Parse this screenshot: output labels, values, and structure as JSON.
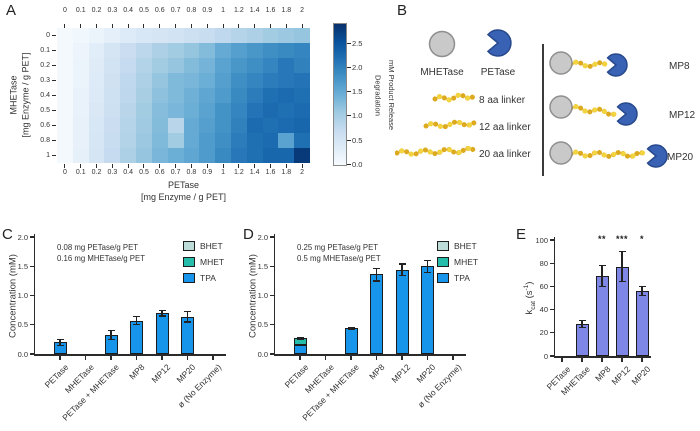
{
  "panel_labels": {
    "a": "A",
    "b": "B",
    "c": "C",
    "d": "D",
    "e": "E"
  },
  "colors": {
    "tpa": "#1795ea",
    "mhet": "#26bcab",
    "bhet": "#bedcd7",
    "kcat": "#7f87e6",
    "edge": "#1c1c1c",
    "axis": "#2b2b2b",
    "petase_shape": "#3a62b4",
    "petase_edge": "#27498c",
    "mhetase_fill": "#c9c9c9",
    "mhetase_edge": "#8f8f8f",
    "linker_dark": "#dca91f",
    "linker_light": "#f2d441",
    "divider": "#3a3a3a"
  },
  "panel_b": {
    "mhetase_label": "MHETase",
    "petase_label": "PETase",
    "linker_labels": [
      "8 aa linker",
      "12 aa linker",
      "20 aa linker"
    ],
    "construct_labels": [
      "MP8",
      "MP12",
      "MP20"
    ]
  },
  "chart_data": [
    {
      "id": "panel_a_heatmap",
      "type": "heatmap",
      "xlabel_line1": "PETase",
      "xlabel_line2": "[mg Enzyme / g PET]",
      "ylabel_line1": "MHETase",
      "ylabel_line2": "[mg Enzyme / g PET]",
      "x_categories": [
        "0",
        "0.1",
        "0.2",
        "0.3",
        "0.4",
        "0.5",
        "0.6",
        "0.7",
        "0.8",
        "0.9",
        "1",
        "1.2",
        "1.4",
        "1.6",
        "1.8",
        "2"
      ],
      "y_categories": [
        "0",
        "0.1",
        "0.2",
        "0.3",
        "0.4",
        "0.5",
        "0.6",
        "0.8",
        "1"
      ],
      "vmin": 0,
      "vmax": 2.9,
      "colorbar": {
        "ticks": [
          "0.0",
          "0.5",
          "1.0",
          "1.5",
          "2.0",
          "2.5"
        ],
        "tick_values": [
          0,
          0.5,
          1,
          1.5,
          2,
          2.5
        ],
        "label_line1": "Degradation",
        "label_line2": "mM Product Release"
      },
      "values": [
        [
          0.05,
          0.1,
          0.18,
          0.28,
          0.38,
          0.45,
          0.5,
          0.55,
          0.62,
          0.68,
          0.78,
          0.88,
          0.95,
          1.05,
          1.1,
          1.15
        ],
        [
          0.05,
          0.15,
          0.32,
          0.5,
          0.65,
          0.82,
          0.95,
          1.05,
          1.15,
          1.28,
          1.5,
          1.65,
          1.75,
          1.85,
          1.9,
          1.95
        ],
        [
          0.05,
          0.18,
          0.35,
          0.55,
          0.72,
          0.9,
          1.05,
          1.15,
          1.28,
          1.38,
          1.6,
          1.75,
          1.85,
          1.95,
          2.1,
          2.0
        ],
        [
          0.05,
          0.18,
          0.38,
          0.58,
          0.78,
          0.95,
          1.15,
          1.3,
          1.35,
          1.45,
          1.65,
          1.85,
          1.95,
          2.05,
          2.1,
          2.15
        ],
        [
          0.05,
          0.2,
          0.4,
          0.6,
          0.8,
          1.0,
          1.2,
          1.3,
          1.42,
          1.55,
          1.7,
          1.9,
          2.05,
          2.2,
          2.25,
          2.2
        ],
        [
          0.05,
          0.2,
          0.42,
          0.62,
          0.85,
          1.05,
          1.25,
          1.35,
          1.45,
          1.6,
          1.8,
          1.95,
          2.15,
          2.25,
          2.2,
          2.25
        ],
        [
          0.05,
          0.22,
          0.45,
          0.65,
          0.88,
          1.08,
          1.28,
          0.85,
          1.5,
          1.65,
          1.8,
          2.0,
          2.25,
          2.2,
          2.25,
          2.3
        ],
        [
          0.05,
          0.22,
          0.48,
          0.68,
          0.9,
          1.1,
          1.3,
          1.05,
          1.5,
          1.7,
          1.85,
          2.05,
          2.2,
          2.25,
          1.6,
          2.2
        ],
        [
          0.05,
          0.25,
          0.5,
          0.72,
          0.95,
          1.15,
          1.35,
          1.45,
          1.55,
          1.7,
          1.9,
          2.1,
          2.2,
          2.3,
          2.3,
          2.8
        ]
      ]
    },
    {
      "id": "panel_c",
      "type": "bar",
      "ylabel": "Concentration (mM)",
      "ylim": [
        0,
        2.0
      ],
      "yticks": [
        "0.0",
        "0.5",
        "1.0",
        "1.5",
        "2.0"
      ],
      "ytick_values": [
        0,
        0.5,
        1.0,
        1.5,
        2.0
      ],
      "annotation": [
        "0.08 mg PETase/g PET",
        "0.16 mg MHETase/g PET"
      ],
      "legend": [
        {
          "label": "BHET",
          "color_key": "bhet"
        },
        {
          "label": "MHET",
          "color_key": "mhet"
        },
        {
          "label": "TPA",
          "color_key": "tpa"
        }
      ],
      "categories": [
        "PETase",
        "MHETase",
        "PETase + MHETase",
        "MP8",
        "MP12",
        "MP20",
        "ø (No Enzyme)"
      ],
      "bars": [
        {
          "segments": [
            {
              "key": "tpa",
              "value": 0.2
            }
          ],
          "error": 0.05,
          "sig": ""
        },
        {
          "segments": [],
          "error": 0,
          "sig": ""
        },
        {
          "segments": [
            {
              "key": "tpa",
              "value": 0.33
            }
          ],
          "error": 0.08,
          "sig": ""
        },
        {
          "segments": [
            {
              "key": "tpa",
              "value": 0.57
            }
          ],
          "error": 0.07,
          "sig": ""
        },
        {
          "segments": [
            {
              "key": "tpa",
              "value": 0.7
            }
          ],
          "error": 0.05,
          "sig": ""
        },
        {
          "segments": [
            {
              "key": "tpa",
              "value": 0.64
            }
          ],
          "error": 0.09,
          "sig": ""
        },
        {
          "segments": [],
          "error": 0,
          "sig": ""
        }
      ]
    },
    {
      "id": "panel_d",
      "type": "bar",
      "ylabel": "Concentration (mM)",
      "ylim": [
        0,
        2.0
      ],
      "yticks": [
        "0.0",
        "0.5",
        "1.0",
        "1.5",
        "2.0"
      ],
      "ytick_values": [
        0,
        0.5,
        1.0,
        1.5,
        2.0
      ],
      "annotation": [
        "0.25 mg PETase/g PET",
        "0.5 mg MHETase/g PET"
      ],
      "legend": [
        {
          "label": "BHET",
          "color_key": "bhet"
        },
        {
          "label": "MHET",
          "color_key": "mhet"
        },
        {
          "label": "TPA",
          "color_key": "tpa"
        }
      ],
      "categories": [
        "PETase",
        "MHETase",
        "PETase + MHETase",
        "MP8",
        "MP12",
        "MP20",
        "ø (No Enzyme)"
      ],
      "bars": [
        {
          "segments": [
            {
              "key": "tpa",
              "value": 0.16
            },
            {
              "key": "mhet",
              "value": 0.11
            }
          ],
          "error": 0.02,
          "sig": ""
        },
        {
          "segments": [],
          "error": 0,
          "sig": ""
        },
        {
          "segments": [
            {
              "key": "tpa",
              "value": 0.44
            }
          ],
          "error": 0.02,
          "sig": ""
        },
        {
          "segments": [
            {
              "key": "tpa",
              "value": 1.36
            }
          ],
          "error": 0.11,
          "sig": ""
        },
        {
          "segments": [
            {
              "key": "tpa",
              "value": 1.44
            }
          ],
          "error": 0.1,
          "sig": ""
        },
        {
          "segments": [
            {
              "key": "tpa",
              "value": 1.5
            }
          ],
          "error": 0.1,
          "sig": ""
        },
        {
          "segments": [],
          "error": 0,
          "sig": ""
        }
      ]
    },
    {
      "id": "panel_e",
      "type": "bar",
      "ylabel_parts": {
        "base": "k",
        "sub": "cat",
        "unit": " (s",
        "sup": "-1",
        "close": ")"
      },
      "ylim": [
        0,
        100
      ],
      "yticks": [
        "0",
        "20",
        "40",
        "60",
        "80",
        "100"
      ],
      "ytick_values": [
        0,
        20,
        40,
        60,
        80,
        100
      ],
      "categories": [
        "PETase",
        "MHETase",
        "MP8",
        "MP12",
        "MP20"
      ],
      "bars": [
        {
          "segments": [],
          "error": 0,
          "sig": ""
        },
        {
          "segments": [
            {
              "key": "kcat",
              "value": 28
            }
          ],
          "error": 3,
          "sig": ""
        },
        {
          "segments": [
            {
              "key": "kcat",
              "value": 69
            }
          ],
          "error": 9,
          "sig": "**"
        },
        {
          "segments": [
            {
              "key": "kcat",
              "value": 77
            }
          ],
          "error": 13,
          "sig": "***"
        },
        {
          "segments": [
            {
              "key": "kcat",
              "value": 56
            }
          ],
          "error": 4,
          "sig": "*"
        }
      ]
    }
  ]
}
